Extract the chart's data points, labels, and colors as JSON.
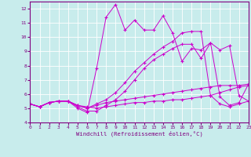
{
  "xlabel": "Windchill (Refroidissement éolien,°C)",
  "background_color": "#c8ecec",
  "line_color": "#cc00cc",
  "grid_color": "#ffffff",
  "xlim": [
    0,
    23
  ],
  "ylim": [
    4,
    12.5
  ],
  "xticks": [
    0,
    1,
    2,
    3,
    4,
    5,
    6,
    7,
    8,
    9,
    10,
    11,
    12,
    13,
    14,
    15,
    16,
    17,
    18,
    19,
    20,
    21,
    22,
    23
  ],
  "yticks": [
    4,
    5,
    6,
    7,
    8,
    9,
    10,
    11,
    12
  ],
  "line1_x": [
    0,
    1,
    2,
    3,
    4,
    5,
    6,
    7,
    8,
    9,
    10,
    11,
    12,
    13,
    14,
    15,
    16,
    17,
    18,
    19,
    20,
    21,
    22,
    23
  ],
  "line1_y": [
    5.3,
    5.1,
    5.4,
    5.5,
    5.5,
    5.2,
    5.1,
    5.0,
    5.1,
    5.2,
    5.3,
    5.4,
    5.4,
    5.5,
    5.5,
    5.6,
    5.6,
    5.7,
    5.8,
    5.9,
    6.1,
    6.3,
    6.5,
    6.6
  ],
  "line2_x": [
    0,
    1,
    2,
    3,
    4,
    5,
    6,
    7,
    8,
    9,
    10,
    11,
    12,
    13,
    14,
    15,
    16,
    17,
    18,
    19,
    20,
    21,
    22,
    23
  ],
  "line2_y": [
    5.3,
    5.1,
    5.4,
    5.5,
    5.5,
    5.2,
    5.0,
    5.2,
    5.4,
    5.5,
    5.6,
    5.7,
    5.8,
    5.9,
    6.0,
    6.1,
    6.2,
    6.3,
    6.4,
    6.5,
    6.6,
    6.6,
    6.6,
    6.7
  ],
  "line3_x": [
    0,
    1,
    2,
    3,
    4,
    5,
    6,
    7,
    8,
    9,
    10,
    11,
    12,
    13,
    14,
    15,
    16,
    17,
    18,
    19,
    20,
    21,
    22,
    23
  ],
  "line3_y": [
    5.3,
    5.1,
    5.4,
    5.5,
    5.5,
    5.1,
    4.8,
    4.8,
    5.2,
    5.6,
    6.2,
    7.0,
    7.8,
    8.4,
    8.8,
    9.2,
    9.5,
    9.5,
    8.5,
    9.6,
    9.1,
    9.4,
    5.9,
    5.5
  ],
  "line4_x": [
    0,
    1,
    2,
    3,
    4,
    5,
    6,
    7,
    8,
    9,
    10,
    11,
    12,
    13,
    14,
    15,
    16,
    17,
    18,
    19,
    20,
    21,
    22,
    23
  ],
  "line4_y": [
    5.3,
    5.1,
    5.4,
    5.5,
    5.5,
    5.0,
    4.7,
    7.8,
    11.4,
    12.3,
    10.5,
    11.2,
    10.5,
    10.5,
    11.5,
    10.3,
    8.3,
    9.2,
    9.1,
    9.6,
    5.8,
    5.2,
    5.4,
    6.7
  ],
  "line5_x": [
    0,
    1,
    2,
    3,
    4,
    5,
    6,
    7,
    8,
    9,
    10,
    11,
    12,
    13,
    14,
    15,
    16,
    17,
    18,
    19,
    20,
    21,
    22,
    23
  ],
  "line5_y": [
    5.3,
    5.1,
    5.4,
    5.5,
    5.5,
    5.2,
    5.0,
    5.3,
    5.6,
    6.1,
    6.8,
    7.6,
    8.2,
    8.8,
    9.3,
    9.7,
    10.3,
    10.4,
    10.4,
    5.9,
    5.3,
    5.1,
    5.3,
    5.5
  ]
}
